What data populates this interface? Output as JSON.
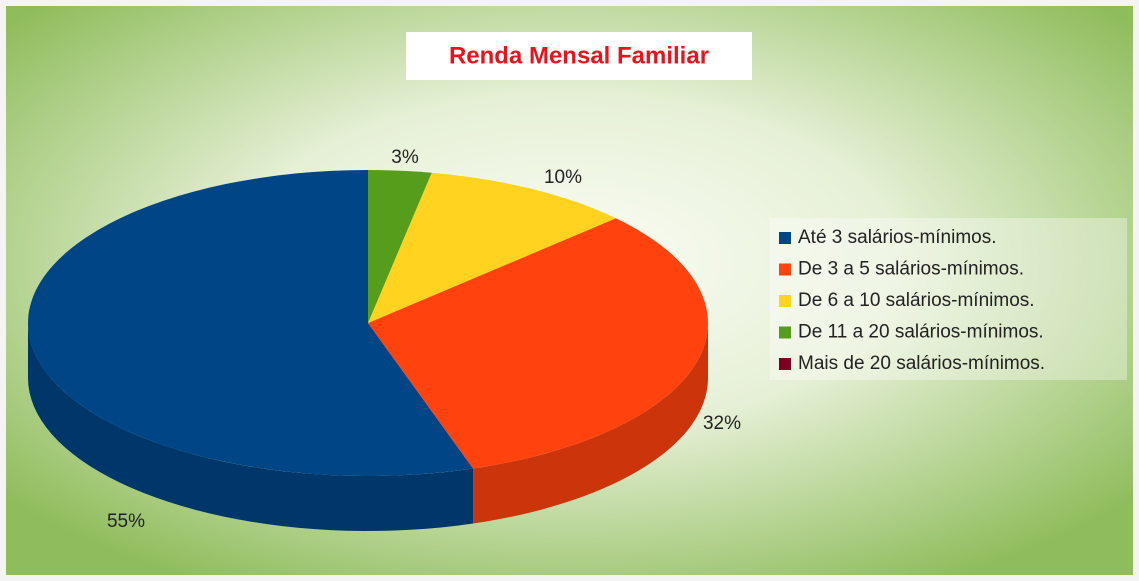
{
  "chart_data": {
    "type": "pie",
    "title": "Renda Mensal Familiar",
    "categories": [
      "Até 3 salários-mínimos.",
      "De 3 a 5 salários-mínimos.",
      "De 6 a 10 salários-mínimos.",
      "De 11 a 20 salários-mínimos.",
      "Mais de 20 salários-mínimos."
    ],
    "values": [
      55,
      32,
      10,
      3,
      0
    ],
    "value_labels": [
      "55%",
      "32%",
      "10%",
      "3%",
      null
    ],
    "colors": [
      "#004586",
      "#ff420e",
      "#ffd320",
      "#579d1c",
      "#7e0021"
    ],
    "legend": "right"
  }
}
